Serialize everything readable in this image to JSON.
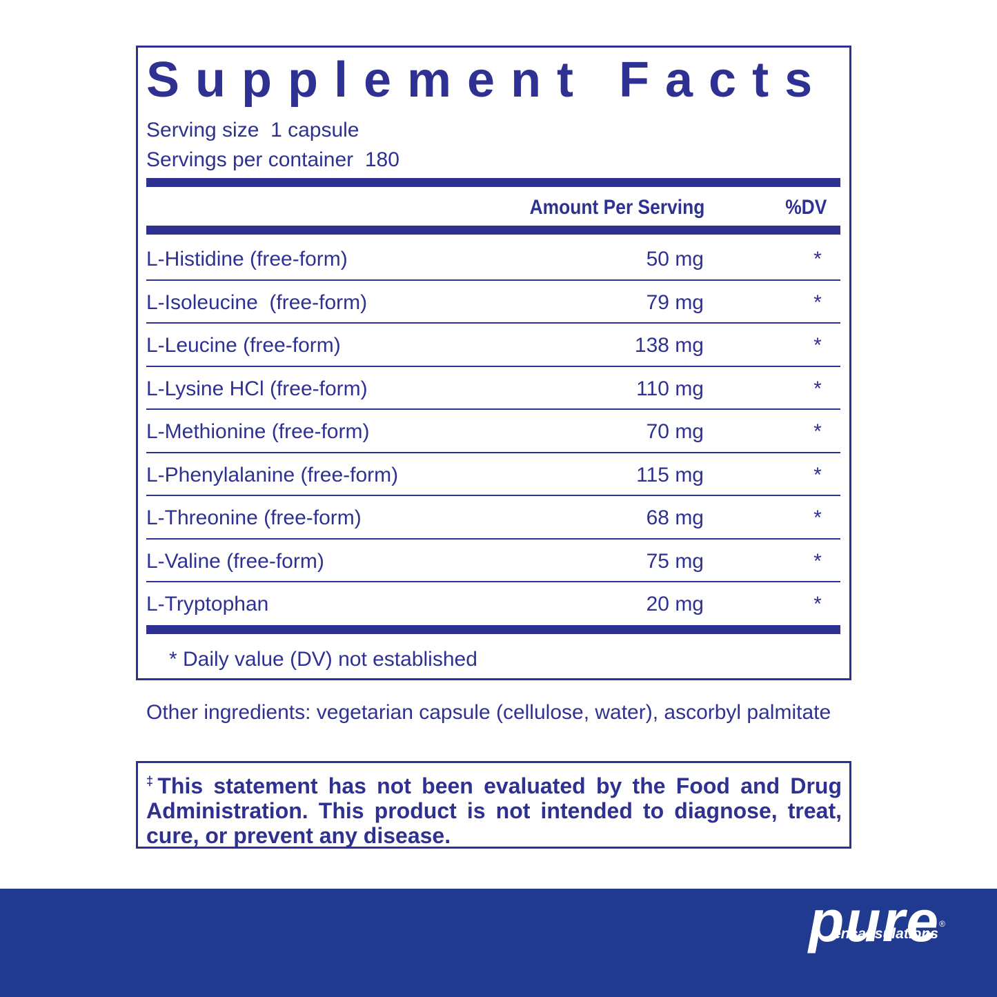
{
  "title": "Supplement Facts",
  "serving_size": "Serving size  1 capsule",
  "servings_per_container": "Servings per container  180",
  "columns": {
    "amount": "Amount Per Serving",
    "dv": "%DV"
  },
  "rows": [
    [
      "L-Histidine (free-form)",
      "50 mg",
      "*"
    ],
    [
      "L-Isoleucine  (free-form)",
      "79 mg",
      "*"
    ],
    [
      "L-Leucine (free-form)",
      "138 mg",
      "*"
    ],
    [
      "L-Lysine HCl (free-form)",
      "110 mg",
      "*"
    ],
    [
      "L-Methionine (free-form)",
      "70 mg",
      "*"
    ],
    [
      "L-Phenylalanine (free-form)",
      "115 mg",
      "*"
    ],
    [
      "L-Threonine (free-form)",
      "68 mg",
      "*"
    ],
    [
      "L-Valine (free-form)",
      "75 mg",
      "*"
    ],
    [
      "L-Tryptophan",
      "20 mg",
      "*"
    ]
  ],
  "footnote": "* Daily value (DV) not established",
  "other_ingredients": "Other ingredients: vegetarian capsule (cellulose, water), ascorbyl palmitate",
  "disclaimer": {
    "mark": "‡",
    "text": "This statement has not been evaluated by the Food and Drug Administration. This product is not intended to diagnose, treat, cure, or prevent any disease."
  },
  "brand": {
    "name": "pure",
    "tagline": "encapsulations",
    "registered": "®"
  }
}
